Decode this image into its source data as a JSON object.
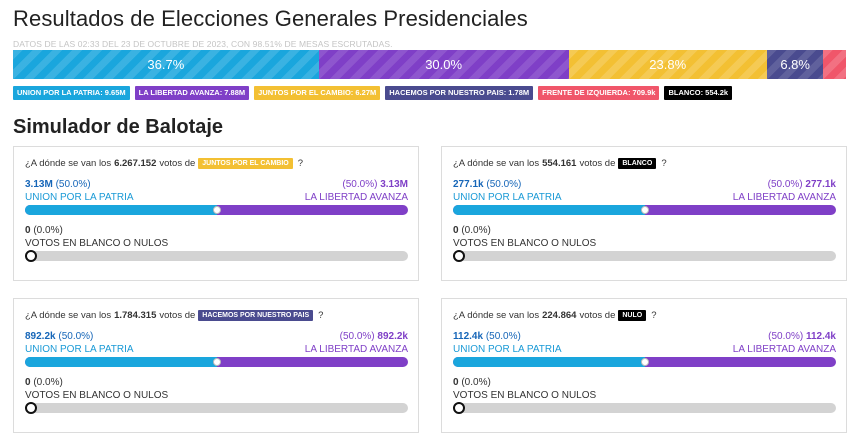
{
  "header": {
    "title": "Resultados de Elecciones Generales Presidenciales",
    "subtitle": "DATOS DE LAS 02:33 DEL 23 DE OCTUBRE DE 2023, CON 98.51% DE MESAS ESCRUTADAS."
  },
  "results": {
    "segments": [
      {
        "id": "up",
        "label": "36.7%",
        "share": 36.7,
        "color": "#1aa6dd"
      },
      {
        "id": "lla",
        "label": "30.0%",
        "share": 30.0,
        "color": "#7f3fc7"
      },
      {
        "id": "jxc",
        "label": "23.8%",
        "share": 23.8,
        "color": "#f3c033"
      },
      {
        "id": "hnp",
        "label": "6.8%",
        "share": 6.8,
        "color": "#4a4b8f"
      },
      {
        "id": "fit",
        "label": "",
        "share": 2.7,
        "color": "#f0566a"
      }
    ]
  },
  "legend": [
    {
      "label": "UNION POR LA PATRIA: 9.65M",
      "color": "#1aa6dd"
    },
    {
      "label": "LA LIBERTAD AVANZA: 7.88M",
      "color": "#7f3fc7"
    },
    {
      "label": "JUNTOS POR EL CAMBIO: 6.27M",
      "color": "#f3c033"
    },
    {
      "label": "HACEMOS POR NUESTRO PAIS: 1.78M",
      "color": "#4a4b8f"
    },
    {
      "label": "FRENTE DE IZQUIERDA: 709.9k",
      "color": "#f0566a"
    },
    {
      "label": "BLANCO: 554.2k",
      "color": "#000000"
    }
  ],
  "simulator": {
    "title": "Simulador de Balotaje",
    "cards": [
      {
        "q_prefix": "¿A dónde se van los",
        "q_votes": "6.267.152",
        "q_mid": "votos de",
        "tag": "JUNTOS POR EL CAMBIO",
        "tag_color": "#f3c033",
        "q_suffix": "?",
        "left_value": "3.13M",
        "left_pct": "(50.0%)",
        "right_pct": "(50.0%)",
        "right_value": "3.13M",
        "left_name": "UNION POR LA PATRIA",
        "right_name": "LA LIBERTAD AVANZA",
        "split": 0.5,
        "blank_value": "0",
        "blank_pct": "(0.0%)",
        "blank_label": "VOTOS EN BLANCO O NULOS",
        "blank_level": 0
      },
      {
        "q_prefix": "¿A dónde se van los",
        "q_votes": "554.161",
        "q_mid": "votos de",
        "tag": "BLANCO",
        "tag_color": "#000000",
        "q_suffix": "?",
        "left_value": "277.1k",
        "left_pct": "(50.0%)",
        "right_pct": "(50.0%)",
        "right_value": "277.1k",
        "left_name": "UNION POR LA PATRIA",
        "right_name": "LA LIBERTAD AVANZA",
        "split": 0.5,
        "blank_value": "0",
        "blank_pct": "(0.0%)",
        "blank_label": "VOTOS EN BLANCO O NULOS",
        "blank_level": 0
      },
      {
        "q_prefix": "¿A dónde se van los",
        "q_votes": "1.784.315",
        "q_mid": "votos de",
        "tag": "HACEMOS POR NUESTRO PAIS",
        "tag_color": "#4a4b8f",
        "q_suffix": "?",
        "left_value": "892.2k",
        "left_pct": "(50.0%)",
        "right_pct": "(50.0%)",
        "right_value": "892.2k",
        "left_name": "UNION POR LA PATRIA",
        "right_name": "LA LIBERTAD AVANZA",
        "split": 0.5,
        "blank_value": "0",
        "blank_pct": "(0.0%)",
        "blank_label": "VOTOS EN BLANCO O NULOS",
        "blank_level": 0
      },
      {
        "q_prefix": "¿A dónde se van los",
        "q_votes": "224.864",
        "q_mid": "votos de",
        "tag": "NULO",
        "tag_color": "#000000",
        "q_suffix": "?",
        "left_value": "112.4k",
        "left_pct": "(50.0%)",
        "right_pct": "(50.0%)",
        "right_value": "112.4k",
        "left_name": "UNION POR LA PATRIA",
        "right_name": "LA LIBERTAD AVANZA",
        "split": 0.5,
        "blank_value": "0",
        "blank_pct": "(0.0%)",
        "blank_label": "VOTOS EN BLANCO O NULOS",
        "blank_level": 0
      }
    ]
  }
}
